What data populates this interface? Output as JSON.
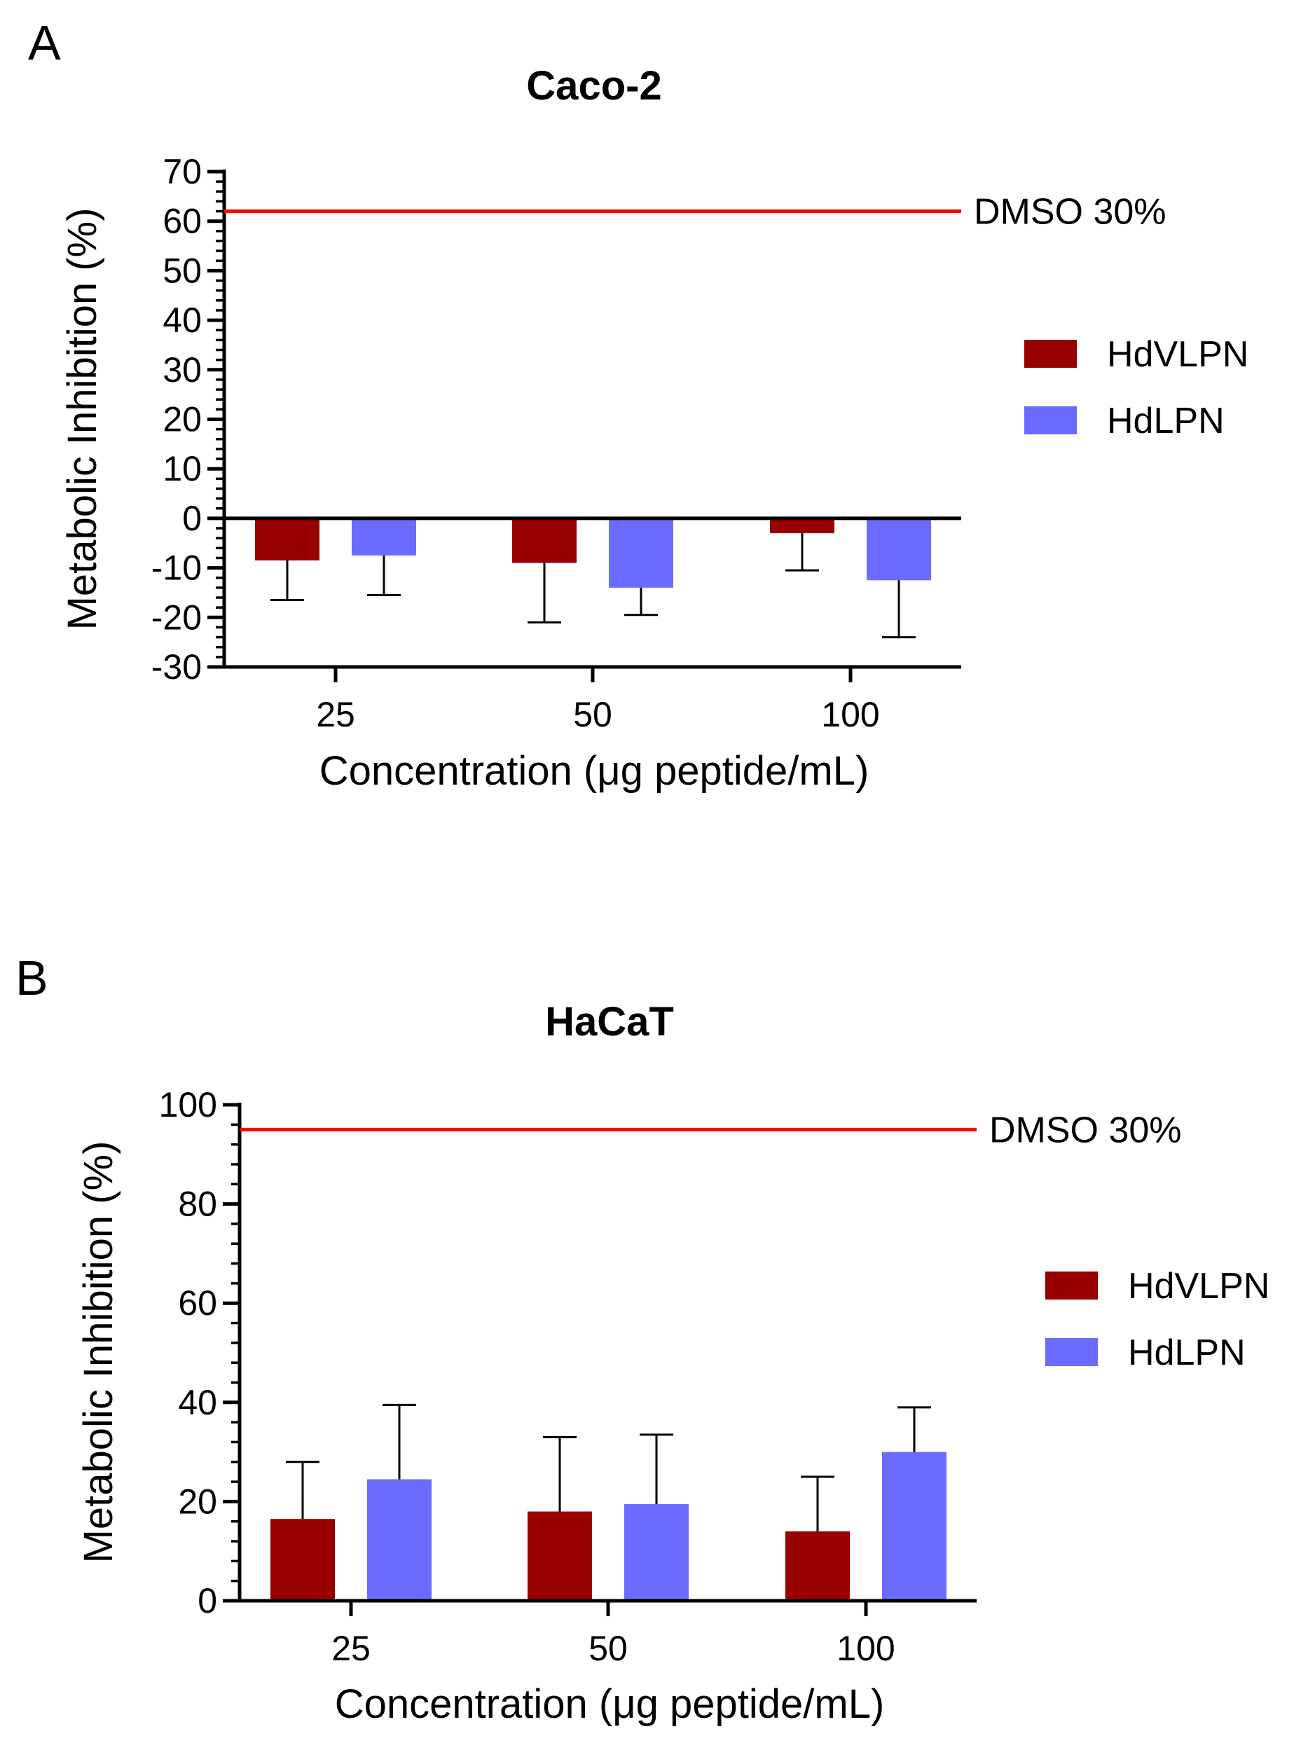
{
  "panels": [
    {
      "letter": "A",
      "chart_key": 0
    },
    {
      "letter": "B",
      "chart_key": 1
    }
  ],
  "chart_data": [
    {
      "type": "bar",
      "title": "Caco-2",
      "xlabel": "Concentration (μg peptide/mL)",
      "ylabel": "Metabolic Inhibition (%)",
      "categories": [
        "25",
        "50",
        "100"
      ],
      "ylim": [
        -30,
        70
      ],
      "yticks": [
        70,
        60,
        50,
        40,
        30,
        20,
        10,
        0,
        -10,
        -20,
        -30
      ],
      "yminor_step": 2,
      "series": [
        {
          "name": "HdVLPN",
          "color": "#990000",
          "values": [
            -8.5,
            -9.0,
            -3.0
          ],
          "errors": [
            8.0,
            12.0,
            7.5
          ]
        },
        {
          "name": "HdLPN",
          "color": "#6b6bff",
          "values": [
            -7.5,
            -14.0,
            -12.5
          ],
          "errors": [
            8.0,
            5.5,
            11.5
          ]
        }
      ],
      "reference_line": {
        "value": 62,
        "label": "DMSO 30%",
        "color": "#ff0000"
      }
    },
    {
      "type": "bar",
      "title": "HaCaT",
      "xlabel": "Concentration (μg peptide/mL)",
      "ylabel": "Metabolic Inhibition (%)",
      "categories": [
        "25",
        "50",
        "100"
      ],
      "ylim": [
        0,
        100
      ],
      "yticks": [
        100,
        80,
        60,
        40,
        20,
        0
      ],
      "yminor_step": 4,
      "series": [
        {
          "name": "HdVLPN",
          "color": "#990000",
          "values": [
            16.5,
            18.0,
            14.0
          ],
          "errors": [
            11.5,
            15.0,
            11.0
          ]
        },
        {
          "name": "HdLPN",
          "color": "#6b6bff",
          "values": [
            24.5,
            19.5,
            30.0
          ],
          "errors": [
            15.0,
            14.0,
            9.0
          ]
        }
      ],
      "reference_line": {
        "value": 95,
        "label": "DMSO 30%",
        "color": "#ff0000"
      }
    }
  ]
}
